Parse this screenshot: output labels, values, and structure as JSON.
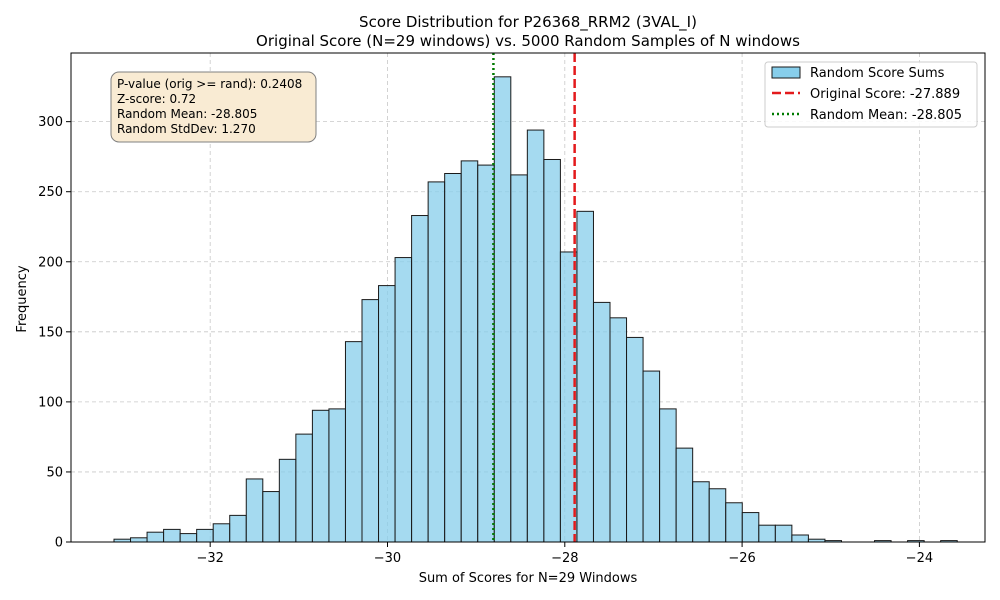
{
  "chart_data": {
    "type": "histogram",
    "title": "Score Distribution for P26368_RRM2 (3VAL_I)",
    "subtitle": "Original Score (N=29 windows) vs. 5000 Random Samples of N windows",
    "xlabel": "Sum of Scores for N=29 Windows",
    "ylabel": "Frequency",
    "xlim": [
      -33.57,
      -23.26
    ],
    "ylim": [
      0,
      349
    ],
    "xticks": [
      -32,
      -30,
      -28,
      -26,
      -24
    ],
    "xtick_labels": [
      "−32",
      "−30",
      "−28",
      "−26",
      "−24"
    ],
    "yticks": [
      0,
      50,
      100,
      150,
      200,
      250,
      300
    ],
    "ytick_labels": [
      "0",
      "50",
      "100",
      "150",
      "200",
      "250",
      "300"
    ],
    "grid": true,
    "bin_start": -33.085,
    "bin_width": 0.1865,
    "counts": [
      2,
      3,
      7,
      9,
      6,
      9,
      13,
      19,
      45,
      36,
      59,
      77,
      94,
      95,
      143,
      173,
      183,
      203,
      233,
      257,
      263,
      272,
      269,
      332,
      262,
      294,
      273,
      207,
      236,
      171,
      160,
      146,
      122,
      95,
      67,
      43,
      38,
      28,
      21,
      12,
      12,
      5,
      2,
      1,
      0,
      0,
      1,
      0,
      1,
      0,
      1
    ],
    "bar_color": "#87ceeb",
    "bar_edge_color": "#1a1a1a",
    "original_score": -27.889,
    "original_score_color": "#e31a1c",
    "random_mean": -28.805,
    "random_mean_color": "#007a00",
    "legend": {
      "placement": "top-right",
      "entries": [
        {
          "label": "Random Score Sums",
          "kind": "patch"
        },
        {
          "label": "Original Score: -27.889",
          "kind": "dashed"
        },
        {
          "label": "Random Mean: -28.805",
          "kind": "dotted"
        }
      ]
    },
    "stats_box": {
      "lines": [
        "P-value (orig >= rand): 0.2408",
        "Z-score: 0.72",
        "Random Mean: -28.805",
        "Random StdDev: 1.270"
      ],
      "background": "#f9ebd3"
    }
  }
}
